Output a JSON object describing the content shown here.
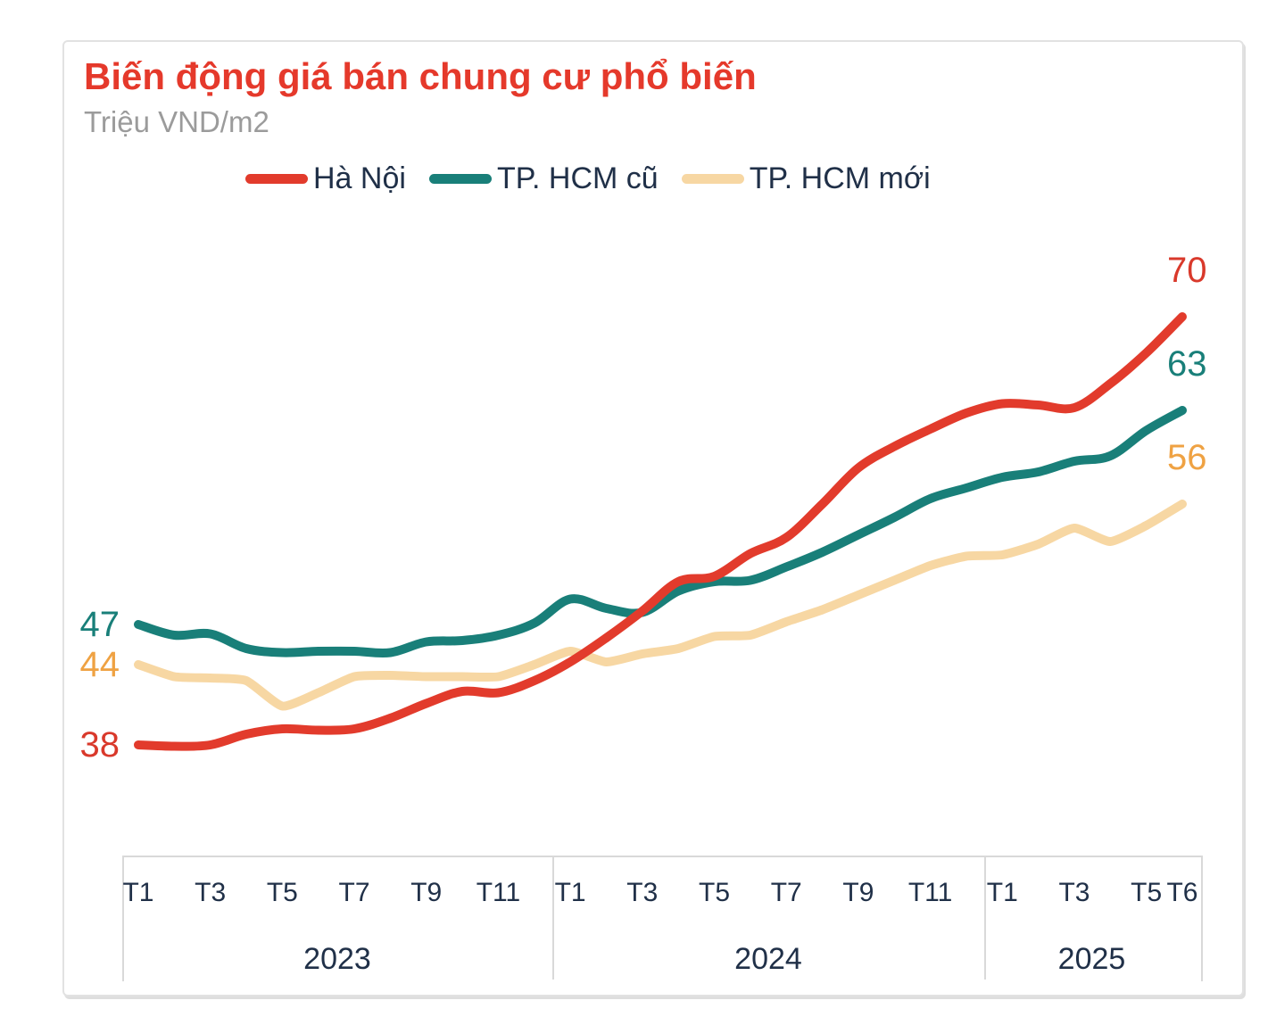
{
  "card": {
    "title": "Biến động giá bán chung cư phổ biến",
    "subtitle": "Triệu VND/m2"
  },
  "colors": {
    "title_red": "#e5392b",
    "text_navy": "#203048",
    "subtitle_gray": "#9b9b9b",
    "border_gray": "#d9d9d9"
  },
  "chart_data": {
    "type": "line",
    "title": "Biến động giá bán chung cư phổ biến",
    "ylabel": "Triệu VND/m2",
    "grid": "off",
    "legend_position": "top",
    "x": [
      "T1/2023",
      "T2/2023",
      "T3/2023",
      "T4/2023",
      "T5/2023",
      "T6/2023",
      "T7/2023",
      "T8/2023",
      "T9/2023",
      "T10/2023",
      "T11/2023",
      "T12/2023",
      "T1/2024",
      "T2/2024",
      "T3/2024",
      "T4/2024",
      "T5/2024",
      "T6/2024",
      "T7/2024",
      "T8/2024",
      "T9/2024",
      "T10/2024",
      "T11/2024",
      "T12/2024",
      "T1/2025",
      "T2/2025",
      "T3/2025",
      "T4/2025",
      "T5/2025",
      "T6/2025"
    ],
    "series": [
      {
        "name": "Hà Nội",
        "key": "ha-noi",
        "color": "#e23b2c",
        "label_color": "#d9392b",
        "start_label": "38",
        "end_label": "70",
        "values": [
          38,
          37.9,
          38,
          38.8,
          39.2,
          39.1,
          39.2,
          40,
          41.1,
          42,
          41.9,
          42.8,
          44.2,
          46,
          48,
          50.2,
          50.6,
          52.3,
          53.5,
          56,
          58.7,
          60.3,
          61.6,
          62.8,
          63.5,
          63.4,
          63.2,
          65,
          67.3,
          70
        ]
      },
      {
        "name": "TP. HCM cũ",
        "key": "tp-hcm-cu",
        "color": "#197f79",
        "label_color": "#197f79",
        "start_label": "47",
        "end_label": "63",
        "values": [
          47,
          46.2,
          46.3,
          45.2,
          44.9,
          45,
          45,
          44.9,
          45.7,
          45.8,
          46.2,
          47.1,
          48.9,
          48.2,
          47.9,
          49.5,
          50.2,
          50.3,
          51.3,
          52.4,
          53.7,
          55,
          56.4,
          57.2,
          58,
          58.4,
          59.2,
          59.6,
          61.5,
          63
        ]
      },
      {
        "name": "TP. HCM mới",
        "key": "tp-hcm-moi",
        "color": "#f7d7a3",
        "label_color": "#efa243",
        "start_label": "44",
        "end_label": "56",
        "values": [
          44,
          43.1,
          43,
          42.8,
          40.9,
          41.9,
          43.1,
          43.2,
          43.1,
          43.1,
          43.1,
          44,
          45,
          44.2,
          44.8,
          45.2,
          46.1,
          46.2,
          47.2,
          48.1,
          49.2,
          50.3,
          51.4,
          52.1,
          52.2,
          53,
          54.2,
          53.2,
          54.4,
          56
        ]
      }
    ],
    "x_axis": {
      "years": [
        {
          "label": "2023",
          "ticks": [
            "T1",
            "T3",
            "T5",
            "T7",
            "T9",
            "T11"
          ],
          "tick_month_indices": [
            0,
            2,
            4,
            6,
            8,
            10
          ]
        },
        {
          "label": "2024",
          "ticks": [
            "T1",
            "T3",
            "T5",
            "T7",
            "T9",
            "T11"
          ],
          "tick_month_indices": [
            12,
            14,
            16,
            18,
            20,
            22
          ]
        },
        {
          "label": "2025",
          "ticks": [
            "T1",
            "T3",
            "T5",
            "T6"
          ],
          "tick_month_indices": [
            24,
            26,
            28,
            29
          ]
        }
      ]
    },
    "ylim": [
      36,
      72
    ]
  }
}
